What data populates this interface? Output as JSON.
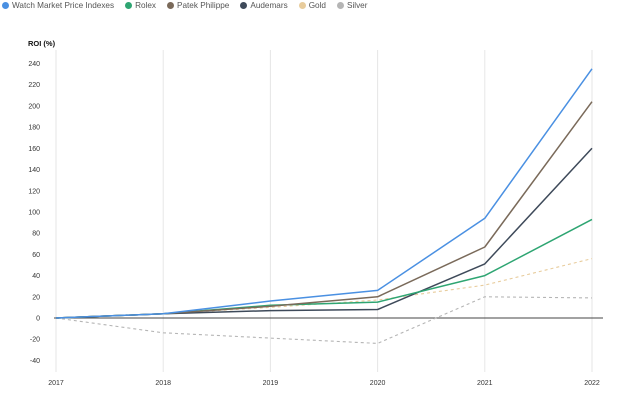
{
  "chart_data": {
    "type": "line",
    "title": "",
    "xlabel": "",
    "ylabel": "ROI (%)",
    "x": [
      "2017",
      "2018",
      "2019",
      "2020",
      "2021",
      "2022"
    ],
    "ylim": [
      -50,
      250
    ],
    "yticks": [
      240,
      220,
      200,
      180,
      160,
      140,
      120,
      100,
      80,
      60,
      40,
      20,
      0,
      -20,
      -40
    ],
    "grid": "vertical",
    "legend_position": "top-left",
    "series": [
      {
        "name": "Watch Market Price Indexes",
        "color": "#4a90e2",
        "dashed": false,
        "values": [
          0,
          4,
          16,
          26,
          94,
          235
        ]
      },
      {
        "name": "Rolex",
        "color": "#2ea572",
        "dashed": false,
        "values": [
          0,
          4,
          12,
          15,
          40,
          93
        ]
      },
      {
        "name": "Patek Philippe",
        "color": "#7a6a5a",
        "dashed": false,
        "values": [
          0,
          4,
          11,
          20,
          67,
          204
        ]
      },
      {
        "name": "Audemars",
        "color": "#3e4a5a",
        "dashed": false,
        "values": [
          0,
          4,
          7,
          8,
          51,
          160
        ]
      },
      {
        "name": "Gold",
        "color": "#e8cc9c",
        "dashed": true,
        "values": [
          0,
          4,
          10,
          17,
          31,
          56
        ]
      },
      {
        "name": "Silver",
        "color": "#b5b5b5",
        "dashed": true,
        "values": [
          0,
          -14,
          -19,
          -24,
          20,
          19
        ]
      }
    ]
  }
}
